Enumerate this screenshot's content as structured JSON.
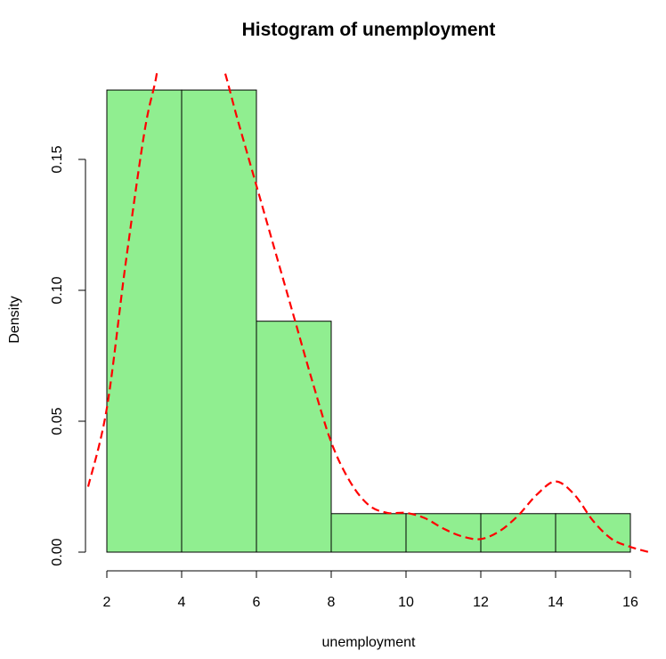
{
  "chart_data": {
    "type": "bar",
    "title": "Histogram of unemployment",
    "xlabel": "unemployment",
    "ylabel": "Density",
    "bins": [
      {
        "x0": 2,
        "x1": 4,
        "density": 0.1765
      },
      {
        "x0": 4,
        "x1": 6,
        "density": 0.1765
      },
      {
        "x0": 6,
        "x1": 8,
        "density": 0.0882
      },
      {
        "x0": 8,
        "x1": 10,
        "density": 0.0147
      },
      {
        "x0": 10,
        "x1": 12,
        "density": 0.0147
      },
      {
        "x0": 12,
        "x1": 14,
        "density": 0.0147
      },
      {
        "x0": 14,
        "x1": 16,
        "density": 0.0147
      }
    ],
    "density_curve": {
      "style": "dashed",
      "color": "#ff0000",
      "x": [
        1.5,
        2.0,
        2.5,
        3.0,
        3.3,
        3.5,
        4.0,
        4.5,
        5.0,
        5.5,
        6.0,
        6.5,
        7.0,
        7.5,
        8.0,
        8.5,
        9.0,
        9.5,
        10.0,
        10.5,
        11.0,
        11.5,
        12.0,
        12.5,
        13.0,
        13.5,
        14.0,
        14.5,
        15.0,
        15.5,
        16.0,
        16.5
      ],
      "y": [
        0.025,
        0.055,
        0.11,
        0.16,
        0.18,
        0.195,
        0.205,
        0.2,
        0.19,
        0.165,
        0.14,
        0.115,
        0.09,
        0.065,
        0.042,
        0.027,
        0.018,
        0.015,
        0.015,
        0.013,
        0.009,
        0.006,
        0.005,
        0.008,
        0.014,
        0.022,
        0.027,
        0.022,
        0.012,
        0.005,
        0.002,
        0.0
      ]
    },
    "xlim": [
      1.5,
      16.5
    ],
    "ylim": [
      0,
      0.185
    ],
    "x_ticks": [
      2,
      4,
      6,
      8,
      10,
      12,
      14,
      16
    ],
    "y_ticks": [
      0.0,
      0.05,
      0.1,
      0.15
    ],
    "y_tick_labels": [
      "0.00",
      "0.05",
      "0.10",
      "0.15"
    ],
    "bar_color": "#90ee90",
    "bar_border_color": "#000000",
    "grid": false
  }
}
